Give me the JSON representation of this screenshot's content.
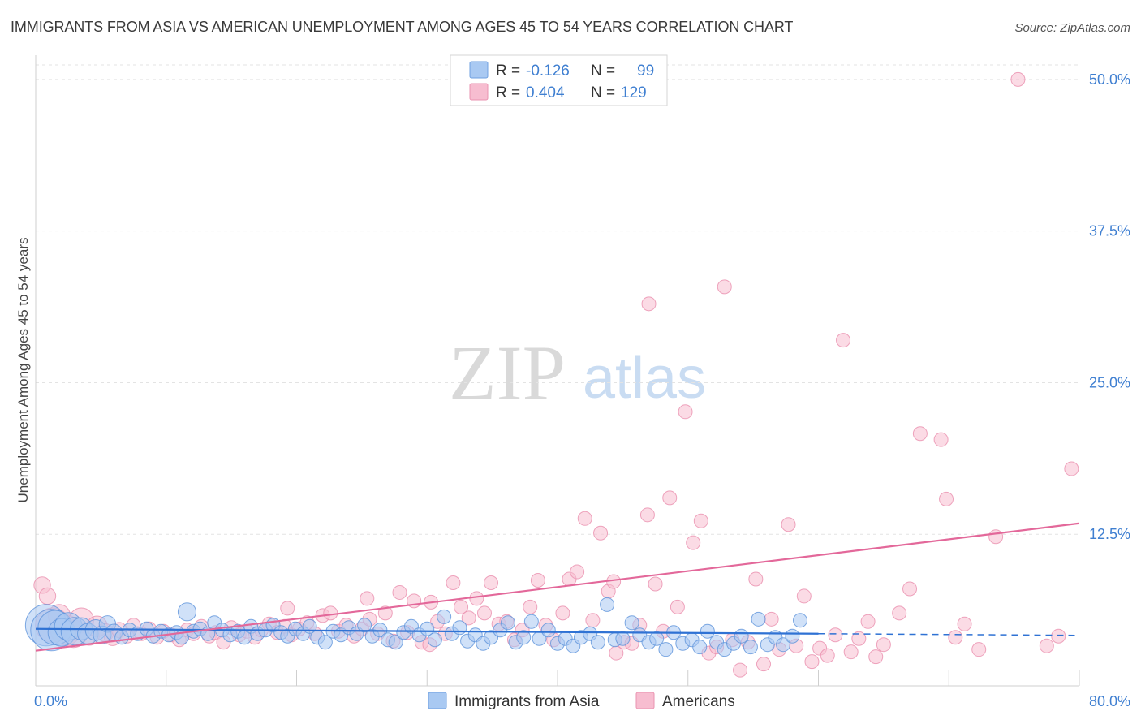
{
  "chart_data": {
    "type": "scatter",
    "title": "IMMIGRANTS FROM ASIA VS AMERICAN UNEMPLOYMENT AMONG AGES 45 TO 54 YEARS CORRELATION CHART",
    "source": "Source: ZipAtlas.com",
    "ylabel": "Unemployment Among Ages 45 to 54 years",
    "xlim": [
      0,
      80
    ],
    "ylim": [
      0,
      52
    ],
    "x_tick_labels": [
      "0.0%",
      "80.0%"
    ],
    "y_ticks": [
      {
        "value": 12.5,
        "label": "12.5%"
      },
      {
        "value": 25.0,
        "label": "25.0%"
      },
      {
        "value": 37.5,
        "label": "37.5%"
      },
      {
        "value": 50.0,
        "label": "50.0%"
      }
    ],
    "watermark": {
      "zip": "ZIP",
      "atlas": "atlas"
    },
    "legend": [
      {
        "r_label": "R = ",
        "r_value": "-0.126",
        "n_label": "N = ",
        "n_value": "99",
        "color": "#a9c9f2",
        "stroke": "#6fa0e0"
      },
      {
        "r_label": "R = ",
        "r_value": "0.404",
        "n_label": "N = ",
        "n_value": "129",
        "color": "#f7bdd0",
        "stroke": "#ea93b0"
      }
    ],
    "series": [
      {
        "name": "Immigrants from Asia",
        "color": "#a9c9f2",
        "stroke": "#5e93db",
        "trend": {
          "x0": 0,
          "y0": 4.7,
          "x1": 60,
          "y1": 4.3,
          "dash_to": 80,
          "color": "#2f72d4"
        },
        "points": [
          [
            0.8,
            5.0,
            3
          ],
          [
            1.2,
            4.6,
            3
          ],
          [
            1.5,
            4.8,
            2.5
          ],
          [
            2.0,
            4.4,
            2
          ],
          [
            2.5,
            4.9,
            2
          ],
          [
            3.0,
            4.5,
            2
          ],
          [
            3.5,
            4.7,
            1.6
          ],
          [
            4.0,
            4.3,
            1.5
          ],
          [
            4.6,
            4.6,
            1.5
          ],
          [
            5.1,
            4.2,
            1.3
          ],
          [
            5.5,
            5.1,
            1.2
          ],
          [
            6.0,
            4.4,
            1.2
          ],
          [
            6.6,
            4.0,
            1
          ],
          [
            7.2,
            4.6,
            1
          ],
          [
            7.8,
            4.3,
            1
          ],
          [
            8.5,
            4.7,
            1
          ],
          [
            9.0,
            4.1,
            1
          ],
          [
            9.6,
            4.5,
            1
          ],
          [
            10.2,
            4.2,
            1
          ],
          [
            10.8,
            4.4,
            1
          ],
          [
            11.2,
            4.0,
            1
          ],
          [
            11.6,
            6.1,
            1.3
          ],
          [
            12.1,
            4.5,
            1
          ],
          [
            12.6,
            4.7,
            1
          ],
          [
            13.2,
            4.3,
            1
          ],
          [
            13.7,
            5.2,
            1
          ],
          [
            14.3,
            4.6,
            1
          ],
          [
            14.9,
            4.2,
            1
          ],
          [
            15.5,
            4.5,
            1
          ],
          [
            16.0,
            4.0,
            1
          ],
          [
            16.5,
            4.9,
            1
          ],
          [
            17.0,
            4.3,
            1
          ],
          [
            17.6,
            4.6,
            1
          ],
          [
            18.2,
            5.0,
            1
          ],
          [
            18.8,
            4.4,
            1
          ],
          [
            19.3,
            4.1,
            1
          ],
          [
            19.9,
            4.7,
            1
          ],
          [
            20.5,
            4.3,
            1
          ],
          [
            21.0,
            4.9,
            1
          ],
          [
            21.6,
            4.0,
            1
          ],
          [
            22.2,
            3.6,
            1
          ],
          [
            22.8,
            4.5,
            1
          ],
          [
            23.4,
            4.2,
            1
          ],
          [
            24.0,
            4.8,
            1
          ],
          [
            24.6,
            4.3,
            1
          ],
          [
            25.2,
            5.0,
            1
          ],
          [
            25.8,
            4.1,
            1
          ],
          [
            26.4,
            4.6,
            1
          ],
          [
            27.0,
            3.8,
            1
          ],
          [
            27.6,
            3.6,
            1
          ],
          [
            28.2,
            4.4,
            1
          ],
          [
            28.8,
            4.9,
            1
          ],
          [
            29.4,
            4.2,
            1
          ],
          [
            30.0,
            4.7,
            1
          ],
          [
            30.6,
            3.8,
            1
          ],
          [
            31.3,
            5.7,
            1
          ],
          [
            31.9,
            4.3,
            1
          ],
          [
            32.5,
            4.8,
            1
          ],
          [
            33.1,
            3.7,
            1
          ],
          [
            33.7,
            4.2,
            1
          ],
          [
            34.3,
            3.5,
            1
          ],
          [
            34.9,
            4.0,
            1
          ],
          [
            35.6,
            4.6,
            1
          ],
          [
            36.2,
            5.2,
            1
          ],
          [
            36.8,
            3.6,
            1
          ],
          [
            37.4,
            4.0,
            1
          ],
          [
            38.0,
            5.3,
            1
          ],
          [
            38.6,
            3.9,
            1
          ],
          [
            39.3,
            4.6,
            1
          ],
          [
            40.0,
            3.5,
            1
          ],
          [
            40.6,
            3.9,
            1
          ],
          [
            41.2,
            3.3,
            1
          ],
          [
            41.8,
            4.0,
            1
          ],
          [
            42.5,
            4.3,
            1
          ],
          [
            43.1,
            3.6,
            1
          ],
          [
            43.8,
            6.7,
            1
          ],
          [
            44.4,
            3.8,
            1
          ],
          [
            45.0,
            3.9,
            1
          ],
          [
            45.7,
            5.2,
            1
          ],
          [
            46.3,
            4.2,
            1
          ],
          [
            47.0,
            3.6,
            1
          ],
          [
            47.6,
            3.9,
            1
          ],
          [
            48.3,
            3.0,
            1
          ],
          [
            48.9,
            4.4,
            1
          ],
          [
            49.6,
            3.5,
            1
          ],
          [
            50.3,
            3.8,
            1
          ],
          [
            50.9,
            3.2,
            1
          ],
          [
            51.5,
            4.5,
            1
          ],
          [
            52.2,
            3.6,
            1
          ],
          [
            52.8,
            3.0,
            1
          ],
          [
            53.5,
            3.5,
            1
          ],
          [
            54.1,
            4.1,
            1
          ],
          [
            54.8,
            3.2,
            1
          ],
          [
            55.4,
            5.5,
            1
          ],
          [
            56.1,
            3.4,
            1
          ],
          [
            56.7,
            4.0,
            1
          ],
          [
            57.3,
            3.4,
            1
          ],
          [
            58.0,
            4.1,
            1
          ],
          [
            58.6,
            5.4,
            1
          ]
        ]
      },
      {
        "name": "Americans",
        "color": "#f7bdd0",
        "stroke": "#ea8fae",
        "trend": {
          "x0": 0,
          "y0": 2.9,
          "x1": 80,
          "y1": 13.4,
          "color": "#e3689a"
        },
        "points": [
          [
            0.5,
            8.3,
            1.2
          ],
          [
            0.9,
            7.4,
            1.2
          ],
          [
            1.3,
            5.0,
            2.5
          ],
          [
            1.8,
            5.8,
            1.6
          ],
          [
            2.3,
            4.6,
            2.2
          ],
          [
            2.9,
            4.3,
            2
          ],
          [
            3.5,
            5.4,
            1.8
          ],
          [
            4.1,
            4.2,
            1.5
          ],
          [
            4.7,
            4.9,
            1.5
          ],
          [
            5.3,
            4.4,
            1.3
          ],
          [
            5.9,
            4.0,
            1.2
          ],
          [
            6.4,
            4.6,
            1.1
          ],
          [
            7.0,
            4.1,
            1
          ],
          [
            7.5,
            5.0,
            1
          ],
          [
            8.1,
            4.3,
            1
          ],
          [
            8.7,
            4.7,
            1
          ],
          [
            9.3,
            4.0,
            1
          ],
          [
            9.8,
            4.5,
            1
          ],
          [
            10.4,
            4.2,
            1
          ],
          [
            11.0,
            3.8,
            1
          ],
          [
            11.6,
            4.6,
            1
          ],
          [
            12.1,
            4.3,
            1
          ],
          [
            12.7,
            4.9,
            1
          ],
          [
            13.3,
            4.1,
            1
          ],
          [
            13.8,
            4.4,
            1
          ],
          [
            14.4,
            3.6,
            1
          ],
          [
            15.0,
            4.8,
            1
          ],
          [
            15.6,
            4.2,
            1
          ],
          [
            16.2,
            4.5,
            1
          ],
          [
            16.8,
            4.0,
            1
          ],
          [
            17.3,
            4.6,
            1
          ],
          [
            17.9,
            5.1,
            1
          ],
          [
            18.5,
            4.4,
            1
          ],
          [
            19.1,
            4.9,
            1
          ],
          [
            19.6,
            4.2,
            1
          ],
          [
            19.3,
            6.4,
            1
          ],
          [
            20.2,
            4.7,
            1
          ],
          [
            20.8,
            5.2,
            1
          ],
          [
            21.4,
            4.3,
            1
          ],
          [
            22.0,
            5.8,
            1
          ],
          [
            22.6,
            6.0,
            1
          ],
          [
            23.2,
            4.5,
            1
          ],
          [
            23.8,
            5.0,
            1
          ],
          [
            24.4,
            4.1,
            1
          ],
          [
            25.0,
            4.7,
            1
          ],
          [
            25.6,
            5.5,
            1
          ],
          [
            25.4,
            7.2,
            1
          ],
          [
            26.2,
            4.3,
            1
          ],
          [
            26.8,
            6.0,
            1
          ],
          [
            27.4,
            3.7,
            1
          ],
          [
            27.9,
            7.7,
            1
          ],
          [
            28.5,
            4.4,
            1
          ],
          [
            29.0,
            7.0,
            1
          ],
          [
            29.6,
            3.6,
            1
          ],
          [
            30.2,
            3.4,
            1
          ],
          [
            30.8,
            5.3,
            1
          ],
          [
            30.3,
            6.9,
            1
          ],
          [
            31.4,
            4.3,
            1
          ],
          [
            32.0,
            8.5,
            1
          ],
          [
            32.6,
            6.5,
            1
          ],
          [
            33.2,
            5.6,
            1
          ],
          [
            33.8,
            7.2,
            1
          ],
          [
            34.4,
            6.0,
            1
          ],
          [
            34.9,
            8.5,
            1
          ],
          [
            35.5,
            5.1,
            1
          ],
          [
            36.1,
            5.3,
            1
          ],
          [
            36.7,
            3.8,
            1
          ],
          [
            37.3,
            4.6,
            1
          ],
          [
            37.9,
            6.5,
            1
          ],
          [
            38.5,
            8.7,
            1
          ],
          [
            39.1,
            5.0,
            1
          ],
          [
            39.7,
            3.8,
            1
          ],
          [
            40.4,
            6.0,
            1
          ],
          [
            40.9,
            8.8,
            1
          ],
          [
            41.5,
            9.4,
            1
          ],
          [
            42.1,
            13.8,
            1
          ],
          [
            42.7,
            5.4,
            1
          ],
          [
            43.3,
            12.6,
            1
          ],
          [
            43.9,
            7.8,
            1
          ],
          [
            44.5,
            2.7,
            1
          ],
          [
            45.1,
            3.6,
            1
          ],
          [
            44.3,
            8.6,
            1
          ],
          [
            45.7,
            3.5,
            1
          ],
          [
            46.3,
            5.0,
            1
          ],
          [
            46.9,
            14.1,
            1
          ],
          [
            47.5,
            8.4,
            1
          ],
          [
            48.1,
            4.5,
            1
          ],
          [
            47.0,
            31.5,
            1
          ],
          [
            48.6,
            15.5,
            1
          ],
          [
            49.2,
            6.5,
            1
          ],
          [
            49.8,
            22.6,
            1
          ],
          [
            50.4,
            11.8,
            1
          ],
          [
            51.0,
            13.6,
            1
          ],
          [
            51.6,
            2.7,
            1
          ],
          [
            52.2,
            3.2,
            1
          ],
          [
            52.8,
            32.9,
            1
          ],
          [
            53.4,
            3.8,
            1
          ],
          [
            54.0,
            1.3,
            1
          ],
          [
            54.6,
            3.6,
            1
          ],
          [
            55.2,
            8.8,
            1
          ],
          [
            55.8,
            1.8,
            1
          ],
          [
            56.4,
            5.5,
            1
          ],
          [
            57.0,
            3.0,
            1
          ],
          [
            57.7,
            13.3,
            1
          ],
          [
            58.3,
            3.3,
            1
          ],
          [
            58.9,
            7.4,
            1
          ],
          [
            59.5,
            2.0,
            1
          ],
          [
            60.1,
            3.1,
            1
          ],
          [
            60.7,
            2.5,
            1
          ],
          [
            61.3,
            4.2,
            1
          ],
          [
            61.9,
            28.5,
            1
          ],
          [
            62.5,
            2.8,
            1
          ],
          [
            63.1,
            3.9,
            1
          ],
          [
            67.0,
            8.0,
            1
          ],
          [
            67.8,
            20.8,
            1
          ],
          [
            69.4,
            20.3,
            1
          ],
          [
            69.8,
            15.4,
            1
          ],
          [
            70.5,
            4.0,
            1
          ],
          [
            71.2,
            5.1,
            1
          ],
          [
            72.3,
            3.0,
            1
          ],
          [
            73.6,
            12.3,
            1
          ],
          [
            75.3,
            50.0,
            1
          ],
          [
            77.5,
            3.3,
            1
          ],
          [
            78.4,
            4.1,
            1
          ],
          [
            79.4,
            17.9,
            1
          ],
          [
            65.0,
            3.4,
            1
          ],
          [
            66.2,
            6.0,
            1
          ],
          [
            63.8,
            5.3,
            1
          ],
          [
            64.4,
            2.4,
            1
          ]
        ]
      }
    ]
  },
  "bottom_legend": [
    {
      "label": "Immigrants from Asia",
      "color": "#a9c9f2",
      "stroke": "#6fa0e0"
    },
    {
      "label": "Americans",
      "color": "#f7bdd0",
      "stroke": "#ea93b0"
    }
  ]
}
